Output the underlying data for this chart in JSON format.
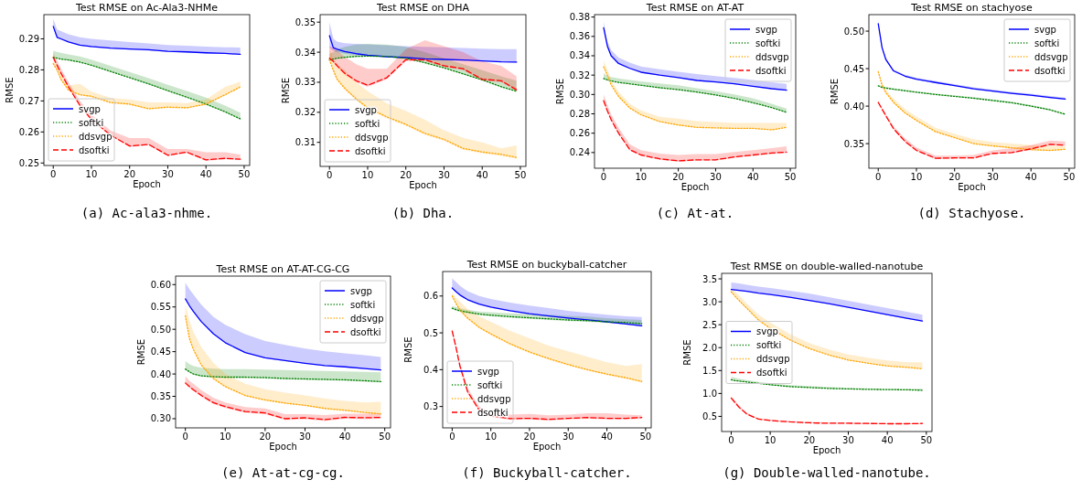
{
  "chart_data": [
    {
      "type": "line",
      "title": "Test RMSE on Ac-Ala3-NHMe",
      "xlabel": "Epoch",
      "ylabel": "RMSE",
      "x": [
        0,
        1,
        2,
        4,
        7,
        10,
        15,
        20,
        25,
        30,
        35,
        40,
        45,
        49
      ],
      "xlim": [
        -2.45,
        51.45
      ],
      "xticks": [
        0,
        10,
        20,
        30,
        40,
        50
      ],
      "ylim": [
        0.2492,
        0.2978
      ],
      "yticks": [
        0.25,
        0.26,
        0.27,
        0.28,
        0.29
      ],
      "legend": "bottom left",
      "annotations": [
        "(a) Ac-ala3-nhme."
      ],
      "series": [
        {
          "name": "svgp",
          "color": "#0000ff",
          "line_style": "solid",
          "values": [
            0.294,
            0.2905,
            0.29,
            0.289,
            0.288,
            0.2875,
            0.287,
            0.2867,
            0.2865,
            0.286,
            0.2858,
            0.2855,
            0.2853,
            0.285
          ],
          "lower": [
            0.2935,
            0.2903,
            0.2898,
            0.2888,
            0.2878,
            0.2873,
            0.2868,
            0.2865,
            0.2862,
            0.2858,
            0.2856,
            0.2853,
            0.2851,
            0.2849
          ],
          "upper": [
            0.2965,
            0.293,
            0.2925,
            0.2915,
            0.2905,
            0.29,
            0.2895,
            0.289,
            0.2885,
            0.288,
            0.2878,
            0.2875,
            0.2873,
            0.2872
          ]
        },
        {
          "name": "softki",
          "color": "#008000",
          "line_style": "dotted",
          "values": [
            0.284,
            0.2838,
            0.2835,
            0.2832,
            0.2825,
            0.2815,
            0.2795,
            0.2775,
            0.2755,
            0.2733,
            0.2712,
            0.269,
            0.2665,
            0.2642
          ],
          "lower": [
            0.2838,
            0.2836,
            0.2833,
            0.283,
            0.2823,
            0.2813,
            0.2793,
            0.2773,
            0.2753,
            0.2731,
            0.271,
            0.2688,
            0.2663,
            0.264
          ],
          "upper": [
            0.2862,
            0.2858,
            0.2855,
            0.285,
            0.2843,
            0.2833,
            0.2813,
            0.2793,
            0.2773,
            0.2752,
            0.2732,
            0.2711,
            0.2685,
            0.2662
          ]
        },
        {
          "name": "ddsvgp",
          "color": "#ffa500",
          "line_style": "dotted",
          "values": [
            0.282,
            0.28,
            0.277,
            0.2735,
            0.272,
            0.2715,
            0.2695,
            0.269,
            0.2675,
            0.268,
            0.2678,
            0.269,
            0.272,
            0.2745
          ],
          "lower": [
            0.2817,
            0.2797,
            0.2767,
            0.2732,
            0.2717,
            0.2712,
            0.2692,
            0.2687,
            0.2672,
            0.2677,
            0.2675,
            0.2687,
            0.2717,
            0.2742
          ],
          "upper": [
            0.2835,
            0.2815,
            0.2785,
            0.275,
            0.2755,
            0.273,
            0.271,
            0.2705,
            0.2695,
            0.2695,
            0.2693,
            0.2705,
            0.2745,
            0.2762
          ]
        },
        {
          "name": "dsoftki",
          "color": "#ff0000",
          "line_style": "dashed",
          "values": [
            0.284,
            0.2815,
            0.279,
            0.2745,
            0.2685,
            0.264,
            0.259,
            0.2555,
            0.256,
            0.2525,
            0.2535,
            0.251,
            0.2515,
            0.2512
          ],
          "lower": [
            0.2837,
            0.2812,
            0.2787,
            0.2742,
            0.2682,
            0.2637,
            0.2587,
            0.2552,
            0.2557,
            0.2522,
            0.2532,
            0.2507,
            0.2512,
            0.2509
          ],
          "upper": [
            0.2855,
            0.283,
            0.2805,
            0.276,
            0.27,
            0.2655,
            0.2605,
            0.258,
            0.258,
            0.2545,
            0.2545,
            0.2535,
            0.2535,
            0.2527
          ]
        }
      ]
    },
    {
      "type": "line",
      "title": "Test RMSE on DHA",
      "xlabel": "Epoch",
      "ylabel": "RMSE",
      "x": [
        0,
        1,
        2,
        4,
        7,
        10,
        15,
        20,
        25,
        30,
        35,
        40,
        45,
        49
      ],
      "xlim": [
        -2.45,
        51.45
      ],
      "xticks": [
        0,
        10,
        20,
        30,
        40,
        50
      ],
      "ylim": [
        0.302,
        0.3525
      ],
      "yticks": [
        0.31,
        0.32,
        0.33,
        0.34,
        0.35
      ],
      "legend": "bottom left",
      "annotations": [
        "(b) Dha."
      ],
      "series": [
        {
          "name": "svgp",
          "color": "#0000ff",
          "line_style": "solid",
          "values": [
            0.3455,
            0.3415,
            0.341,
            0.3402,
            0.3395,
            0.339,
            0.3385,
            0.3382,
            0.3378,
            0.3376,
            0.3374,
            0.3371,
            0.3368,
            0.3367
          ],
          "lower": [
            0.3415,
            0.3405,
            0.34,
            0.3395,
            0.339,
            0.3387,
            0.3383,
            0.338,
            0.3377,
            0.3375,
            0.3373,
            0.337,
            0.3367,
            0.3365
          ],
          "upper": [
            0.35,
            0.3445,
            0.3435,
            0.343,
            0.3428,
            0.3426,
            0.3423,
            0.342,
            0.3418,
            0.3416,
            0.3414,
            0.3412,
            0.341,
            0.341
          ]
        },
        {
          "name": "softki",
          "color": "#008000",
          "line_style": "dotted",
          "values": [
            0.3375,
            0.3377,
            0.338,
            0.3383,
            0.3386,
            0.3387,
            0.3386,
            0.338,
            0.3365,
            0.3348,
            0.3328,
            0.3308,
            0.3285,
            0.327
          ],
          "lower": [
            0.3373,
            0.3375,
            0.3378,
            0.3381,
            0.3384,
            0.3385,
            0.3384,
            0.3378,
            0.3363,
            0.3346,
            0.3326,
            0.3306,
            0.3283,
            0.3268
          ],
          "upper": [
            0.3395,
            0.34,
            0.341,
            0.3418,
            0.3425,
            0.3428,
            0.3425,
            0.3418,
            0.34,
            0.338,
            0.336,
            0.334,
            0.332,
            0.3305
          ]
        },
        {
          "name": "ddsvgp",
          "color": "#ffa500",
          "line_style": "dotted",
          "values": [
            0.3375,
            0.334,
            0.331,
            0.328,
            0.3245,
            0.3215,
            0.3185,
            0.316,
            0.313,
            0.311,
            0.308,
            0.3068,
            0.306,
            0.305
          ],
          "lower": [
            0.337,
            0.3335,
            0.3305,
            0.3275,
            0.324,
            0.321,
            0.318,
            0.3155,
            0.3125,
            0.3105,
            0.3075,
            0.3063,
            0.3055,
            0.3045
          ],
          "upper": [
            0.3415,
            0.338,
            0.336,
            0.334,
            0.33,
            0.327,
            0.323,
            0.3205,
            0.3175,
            0.314,
            0.3115,
            0.31,
            0.308,
            0.309
          ]
        },
        {
          "name": "dsoftki",
          "color": "#ff0000",
          "line_style": "dashed",
          "values": [
            0.338,
            0.337,
            0.3355,
            0.333,
            0.3305,
            0.329,
            0.3315,
            0.3375,
            0.3375,
            0.3355,
            0.3345,
            0.331,
            0.3305,
            0.3275
          ],
          "lower": [
            0.3375,
            0.3365,
            0.335,
            0.3325,
            0.33,
            0.3285,
            0.331,
            0.337,
            0.337,
            0.335,
            0.334,
            0.3305,
            0.33,
            0.327
          ],
          "upper": [
            0.342,
            0.3415,
            0.3405,
            0.3385,
            0.336,
            0.3345,
            0.3345,
            0.341,
            0.344,
            0.342,
            0.34,
            0.337,
            0.3355,
            0.332
          ]
        }
      ]
    },
    {
      "type": "line",
      "title": "Test RMSE on AT-AT",
      "xlabel": "Epoch",
      "ylabel": "RMSE",
      "x": [
        0,
        1,
        2,
        4,
        7,
        10,
        15,
        20,
        25,
        30,
        35,
        40,
        45,
        49
      ],
      "xlim": [
        -2.45,
        51.45
      ],
      "xticks": [
        0,
        10,
        20,
        30,
        40,
        50
      ],
      "ylim": [
        0.2238,
        0.3825
      ],
      "yticks": [
        0.24,
        0.26,
        0.28,
        {
          "value": 0.3,
          "label": "0.30"
        },
        0.32,
        0.34,
        0.36,
        0.38
      ],
      "legend": "top right",
      "annotations": [
        "(c) At-at."
      ],
      "series": [
        {
          "name": "svgp",
          "color": "#0000ff",
          "line_style": "solid",
          "values": [
            0.369,
            0.35,
            0.34,
            0.332,
            0.327,
            0.323,
            0.32,
            0.3175,
            0.3145,
            0.313,
            0.311,
            0.3085,
            0.306,
            0.3045
          ],
          "lower": [
            0.3685,
            0.3495,
            0.3395,
            0.3315,
            0.3265,
            0.3225,
            0.3195,
            0.317,
            0.314,
            0.3125,
            0.3105,
            0.308,
            0.3055,
            0.304
          ],
          "upper": [
            0.375,
            0.355,
            0.346,
            0.338,
            0.333,
            0.329,
            0.326,
            0.3235,
            0.321,
            0.319,
            0.317,
            0.315,
            0.3125,
            0.311
          ]
        },
        {
          "name": "softki",
          "color": "#008000",
          "line_style": "dotted",
          "values": [
            0.3165,
            0.315,
            0.314,
            0.3125,
            0.311,
            0.3095,
            0.307,
            0.305,
            0.3025,
            0.2995,
            0.296,
            0.2915,
            0.2865,
            0.2815
          ],
          "lower": [
            0.316,
            0.3145,
            0.3135,
            0.312,
            0.3105,
            0.309,
            0.3065,
            0.3045,
            0.302,
            0.299,
            0.2955,
            0.291,
            0.286,
            0.281
          ],
          "upper": [
            0.322,
            0.319,
            0.318,
            0.3165,
            0.315,
            0.3135,
            0.3115,
            0.3095,
            0.3065,
            0.3035,
            0.3,
            0.296,
            0.2905,
            0.2855
          ]
        },
        {
          "name": "ddsvgp",
          "color": "#ffa500",
          "line_style": "dotted",
          "values": [
            0.3285,
            0.32,
            0.31,
            0.298,
            0.286,
            0.279,
            0.272,
            0.2685,
            0.266,
            0.2655,
            0.265,
            0.265,
            0.2635,
            0.266
          ],
          "lower": [
            0.328,
            0.3195,
            0.3095,
            0.2975,
            0.2855,
            0.2785,
            0.2715,
            0.268,
            0.2655,
            0.265,
            0.2645,
            0.2645,
            0.263,
            0.2655
          ],
          "upper": [
            0.335,
            0.326,
            0.315,
            0.303,
            0.2905,
            0.2835,
            0.277,
            0.275,
            0.2725,
            0.2715,
            0.2705,
            0.2705,
            0.2705,
            0.2705
          ]
        },
        {
          "name": "dsoftki",
          "color": "#ff0000",
          "line_style": "dashed",
          "values": [
            0.2935,
            0.283,
            0.274,
            0.26,
            0.243,
            0.2375,
            0.2335,
            0.2315,
            0.2325,
            0.2325,
            0.2355,
            0.2375,
            0.2395,
            0.2405
          ],
          "lower": [
            0.2925,
            0.282,
            0.273,
            0.259,
            0.242,
            0.2365,
            0.2325,
            0.2305,
            0.2315,
            0.2315,
            0.2345,
            0.2365,
            0.2385,
            0.2395
          ],
          "upper": [
            0.3,
            0.289,
            0.2795,
            0.2655,
            0.2485,
            0.2425,
            0.239,
            0.2375,
            0.2385,
            0.2385,
            0.2405,
            0.2425,
            0.2445,
            0.2465
          ]
        }
      ]
    },
    {
      "type": "line",
      "title": "Test RMSE on stachyose",
      "xlabel": "Epoch",
      "ylabel": "RMSE",
      "x": [
        0,
        1,
        2,
        4,
        7,
        10,
        15,
        20,
        25,
        30,
        35,
        40,
        45,
        49
      ],
      "xlim": [
        -2.45,
        51.45
      ],
      "xticks": [
        0,
        10,
        20,
        30,
        40,
        50
      ],
      "ylim": [
        0.3172,
        0.522
      ],
      "yticks": [
        0.35,
        {
          "value": 0.4,
          "label": "0.40"
        },
        0.45,
        {
          "value": 0.5,
          "label": "0.50"
        }
      ],
      "legend": "top right",
      "annotations": [
        "(d) Stachyose."
      ],
      "series": [
        {
          "name": "svgp",
          "color": "#0000ff",
          "line_style": "solid",
          "values": [
            0.51,
            0.478,
            0.462,
            0.447,
            0.44,
            0.436,
            0.4315,
            0.4275,
            0.423,
            0.42,
            0.417,
            0.4145,
            0.4115,
            0.4095
          ],
          "lower": [
            0.509,
            0.477,
            0.461,
            0.446,
            0.439,
            0.435,
            0.4305,
            0.4265,
            0.422,
            0.419,
            0.416,
            0.4135,
            0.4105,
            0.4085
          ],
          "upper": [
            0.512,
            0.48,
            0.464,
            0.449,
            0.442,
            0.438,
            0.4335,
            0.4295,
            0.425,
            0.422,
            0.419,
            0.4165,
            0.4135,
            0.4115
          ]
        },
        {
          "name": "softki",
          "color": "#008000",
          "line_style": "dotted",
          "values": [
            0.427,
            0.425,
            0.424,
            0.4225,
            0.4205,
            0.4185,
            0.4155,
            0.413,
            0.4105,
            0.4075,
            0.4045,
            0.4,
            0.395,
            0.389
          ],
          "lower": [
            0.4265,
            0.4245,
            0.4235,
            0.422,
            0.42,
            0.418,
            0.415,
            0.4125,
            0.41,
            0.407,
            0.404,
            0.3995,
            0.3945,
            0.3885
          ],
          "upper": [
            0.4285,
            0.4265,
            0.4255,
            0.424,
            0.422,
            0.42,
            0.417,
            0.4145,
            0.412,
            0.409,
            0.406,
            0.4015,
            0.3965,
            0.3905
          ]
        },
        {
          "name": "ddsvgp",
          "color": "#ffa500",
          "line_style": "dotted",
          "values": [
            0.446,
            0.428,
            0.418,
            0.405,
            0.391,
            0.381,
            0.366,
            0.358,
            0.35,
            0.347,
            0.3445,
            0.342,
            0.341,
            0.3425
          ],
          "lower": [
            0.445,
            0.427,
            0.417,
            0.404,
            0.39,
            0.38,
            0.365,
            0.357,
            0.349,
            0.346,
            0.3435,
            0.341,
            0.34,
            0.3415
          ],
          "upper": [
            0.448,
            0.431,
            0.422,
            0.41,
            0.396,
            0.386,
            0.371,
            0.363,
            0.356,
            0.352,
            0.35,
            0.348,
            0.347,
            0.347
          ]
        },
        {
          "name": "dsoftki",
          "color": "#ff0000",
          "line_style": "dashed",
          "values": [
            0.405,
            0.396,
            0.387,
            0.37,
            0.353,
            0.341,
            0.3305,
            0.331,
            0.331,
            0.337,
            0.338,
            0.343,
            0.349,
            0.348
          ],
          "lower": [
            0.404,
            0.395,
            0.386,
            0.369,
            0.352,
            0.34,
            0.3295,
            0.33,
            0.33,
            0.336,
            0.337,
            0.342,
            0.348,
            0.347
          ],
          "upper": [
            0.407,
            0.398,
            0.39,
            0.373,
            0.357,
            0.345,
            0.334,
            0.334,
            0.335,
            0.341,
            0.344,
            0.348,
            0.354,
            0.353
          ]
        }
      ]
    },
    {
      "type": "line",
      "title": "Test RMSE on AT-AT-CG-CG",
      "xlabel": "Epoch",
      "ylabel": "RMSE",
      "x": [
        0,
        1,
        2,
        4,
        7,
        10,
        15,
        20,
        25,
        30,
        35,
        40,
        45,
        49
      ],
      "xlim": [
        -2.45,
        51.45
      ],
      "xticks": [
        0,
        10,
        20,
        30,
        40,
        50
      ],
      "ylim": [
        0.2795,
        0.619
      ],
      "yticks": [
        {
          "value": 0.3,
          "label": "0.30"
        },
        0.35,
        {
          "value": 0.4,
          "label": "0.40"
        },
        0.45,
        {
          "value": 0.5,
          "label": "0.50"
        },
        0.55,
        {
          "value": 0.6,
          "label": "0.60"
        }
      ],
      "legend": "top right",
      "annotations": [
        "(e) At-at-cg-cg."
      ],
      "series": [
        {
          "name": "svgp",
          "color": "#0000ff",
          "line_style": "solid",
          "values": [
            0.568,
            0.553,
            0.54,
            0.517,
            0.49,
            0.47,
            0.448,
            0.436,
            0.43,
            0.424,
            0.419,
            0.416,
            0.412,
            0.409
          ],
          "lower": [
            0.567,
            0.552,
            0.539,
            0.516,
            0.489,
            0.469,
            0.447,
            0.435,
            0.429,
            0.423,
            0.418,
            0.415,
            0.411,
            0.408
          ],
          "upper": [
            0.604,
            0.59,
            0.578,
            0.555,
            0.528,
            0.51,
            0.489,
            0.474,
            0.465,
            0.457,
            0.451,
            0.446,
            0.442,
            0.438
          ]
        },
        {
          "name": "softki",
          "color": "#008000",
          "line_style": "dotted",
          "values": [
            0.411,
            0.405,
            0.4,
            0.396,
            0.394,
            0.393,
            0.393,
            0.392,
            0.39,
            0.389,
            0.388,
            0.387,
            0.385,
            0.383
          ],
          "lower": [
            0.409,
            0.403,
            0.398,
            0.394,
            0.392,
            0.391,
            0.391,
            0.39,
            0.388,
            0.387,
            0.386,
            0.385,
            0.383,
            0.381
          ],
          "upper": [
            0.429,
            0.422,
            0.418,
            0.414,
            0.412,
            0.411,
            0.411,
            0.41,
            0.409,
            0.408,
            0.407,
            0.406,
            0.405,
            0.404
          ]
        },
        {
          "name": "ddsvgp",
          "color": "#ffa500",
          "line_style": "dotted",
          "values": [
            0.53,
            0.48,
            0.455,
            0.42,
            0.39,
            0.372,
            0.352,
            0.342,
            0.335,
            0.33,
            0.323,
            0.319,
            0.314,
            0.311
          ],
          "lower": [
            0.528,
            0.478,
            0.453,
            0.418,
            0.388,
            0.37,
            0.35,
            0.34,
            0.333,
            0.328,
            0.321,
            0.317,
            0.312,
            0.309
          ],
          "upper": [
            0.555,
            0.52,
            0.495,
            0.46,
            0.425,
            0.4,
            0.378,
            0.366,
            0.358,
            0.352,
            0.345,
            0.34,
            0.336,
            0.338
          ]
        },
        {
          "name": "dsoftki",
          "color": "#ff0000",
          "line_style": "dashed",
          "values": [
            0.38,
            0.372,
            0.365,
            0.352,
            0.336,
            0.327,
            0.316,
            0.313,
            0.3,
            0.302,
            0.298,
            0.303,
            0.302,
            0.303
          ],
          "lower": [
            0.377,
            0.369,
            0.362,
            0.349,
            0.333,
            0.324,
            0.313,
            0.31,
            0.297,
            0.299,
            0.295,
            0.3,
            0.299,
            0.3
          ],
          "upper": [
            0.395,
            0.385,
            0.378,
            0.364,
            0.347,
            0.336,
            0.326,
            0.323,
            0.31,
            0.31,
            0.308,
            0.311,
            0.311,
            0.312
          ]
        }
      ]
    },
    {
      "type": "line",
      "title": "Test RMSE on buckyball-catcher",
      "xlabel": "Epoch",
      "ylabel": "RMSE",
      "x": [
        0,
        1,
        2,
        4,
        7,
        10,
        15,
        20,
        25,
        30,
        35,
        40,
        45,
        49
      ],
      "xlim": [
        -2.45,
        51.45
      ],
      "xticks": [
        0,
        10,
        20,
        30,
        40,
        50
      ],
      "ylim": [
        0.242,
        0.6665
      ],
      "yticks": [
        0.3,
        0.4,
        0.5,
        0.6
      ],
      "legend": "bottom left",
      "annotations": [
        "(f) Buckyball-catcher."
      ],
      "series": [
        {
          "name": "svgp",
          "color": "#0000ff",
          "line_style": "solid",
          "values": [
            0.622,
            0.612,
            0.603,
            0.59,
            0.578,
            0.57,
            0.56,
            0.552,
            0.546,
            0.54,
            0.535,
            0.53,
            0.524,
            0.519
          ],
          "lower": [
            0.62,
            0.61,
            0.601,
            0.588,
            0.576,
            0.568,
            0.558,
            0.55,
            0.544,
            0.538,
            0.533,
            0.528,
            0.522,
            0.517
          ],
          "upper": [
            0.648,
            0.638,
            0.628,
            0.613,
            0.6,
            0.592,
            0.582,
            0.574,
            0.567,
            0.56,
            0.554,
            0.549,
            0.545,
            0.543
          ]
        },
        {
          "name": "softki",
          "color": "#008000",
          "line_style": "dotted",
          "values": [
            0.567,
            0.563,
            0.56,
            0.556,
            0.551,
            0.548,
            0.544,
            0.541,
            0.538,
            0.535,
            0.533,
            0.53,
            0.528,
            0.525
          ],
          "lower": [
            0.564,
            0.56,
            0.557,
            0.553,
            0.548,
            0.545,
            0.541,
            0.538,
            0.535,
            0.532,
            0.53,
            0.527,
            0.525,
            0.522
          ],
          "upper": [
            0.573,
            0.57,
            0.567,
            0.562,
            0.558,
            0.556,
            0.553,
            0.551,
            0.549,
            0.546,
            0.544,
            0.54,
            0.537,
            0.535
          ]
        },
        {
          "name": "ddsvgp",
          "color": "#ffa500",
          "line_style": "dotted",
          "values": [
            0.6,
            0.58,
            0.562,
            0.54,
            0.515,
            0.497,
            0.47,
            0.448,
            0.43,
            0.414,
            0.4,
            0.388,
            0.378,
            0.368
          ],
          "lower": [
            0.597,
            0.577,
            0.559,
            0.537,
            0.512,
            0.494,
            0.467,
            0.445,
            0.427,
            0.411,
            0.397,
            0.385,
            0.375,
            0.365
          ],
          "upper": [
            0.61,
            0.595,
            0.585,
            0.565,
            0.545,
            0.53,
            0.505,
            0.485,
            0.465,
            0.45,
            0.435,
            0.42,
            0.41,
            0.415
          ]
        },
        {
          "name": "dsoftki",
          "color": "#ff0000",
          "line_style": "dashed",
          "values": [
            0.505,
            0.46,
            0.41,
            0.34,
            0.29,
            0.275,
            0.267,
            0.268,
            0.265,
            0.268,
            0.27,
            0.268,
            0.268,
            0.27
          ],
          "lower": [
            0.502,
            0.457,
            0.407,
            0.337,
            0.287,
            0.272,
            0.264,
            0.265,
            0.262,
            0.265,
            0.267,
            0.265,
            0.265,
            0.267
          ],
          "upper": [
            0.512,
            0.47,
            0.42,
            0.35,
            0.3,
            0.285,
            0.278,
            0.28,
            0.276,
            0.278,
            0.282,
            0.282,
            0.278,
            0.276
          ]
        }
      ]
    },
    {
      "type": "line",
      "title": "Test RMSE on double-walled-nanotube",
      "xlabel": "Epoch",
      "ylabel": "RMSE",
      "x": [
        0,
        1,
        2,
        4,
        7,
        10,
        15,
        20,
        25,
        30,
        35,
        40,
        45,
        49
      ],
      "xlim": [
        -2.45,
        51.45
      ],
      "xticks": [
        0,
        10,
        20,
        30,
        40,
        50
      ],
      "ylim": [
        0.17,
        3.62
      ],
      "yticks": [
        0.5,
        {
          "value": 1,
          "label": "1.0"
        },
        1.5,
        {
          "value": 2,
          "label": "2.0"
        },
        2.5,
        {
          "value": 3,
          "label": "3.0"
        },
        3.5
      ],
      "legend": "left",
      "annotations": [
        "(g) Double-walled-nanotube."
      ],
      "series": [
        {
          "name": "svgp",
          "color": "#0000ff",
          "line_style": "solid",
          "values": [
            3.27,
            3.26,
            3.25,
            3.23,
            3.19,
            3.16,
            3.1,
            3.03,
            2.96,
            2.88,
            2.8,
            2.72,
            2.64,
            2.58
          ],
          "lower": [
            3.26,
            3.25,
            3.24,
            3.22,
            3.18,
            3.15,
            3.09,
            3.02,
            2.95,
            2.87,
            2.79,
            2.71,
            2.63,
            2.57
          ],
          "upper": [
            3.42,
            3.41,
            3.4,
            3.37,
            3.33,
            3.3,
            3.24,
            3.18,
            3.1,
            3.02,
            2.94,
            2.86,
            2.78,
            2.72
          ]
        },
        {
          "name": "softki",
          "color": "#008000",
          "line_style": "dotted",
          "values": [
            1.3,
            1.28,
            1.27,
            1.25,
            1.22,
            1.19,
            1.15,
            1.13,
            1.11,
            1.1,
            1.09,
            1.085,
            1.08,
            1.07
          ],
          "lower": [
            1.29,
            1.27,
            1.26,
            1.24,
            1.21,
            1.18,
            1.14,
            1.12,
            1.1,
            1.09,
            1.08,
            1.075,
            1.07,
            1.06
          ],
          "upper": [
            1.36,
            1.34,
            1.32,
            1.29,
            1.25,
            1.22,
            1.18,
            1.16,
            1.14,
            1.12,
            1.11,
            1.1,
            1.1,
            1.1
          ]
        },
        {
          "name": "ddsvgp",
          "color": "#ffa500",
          "line_style": "dotted",
          "values": [
            3.22,
            3.12,
            3.03,
            2.86,
            2.6,
            2.42,
            2.17,
            1.98,
            1.84,
            1.73,
            1.66,
            1.6,
            1.57,
            1.54
          ],
          "lower": [
            3.21,
            3.11,
            3.02,
            2.85,
            2.59,
            2.41,
            2.16,
            1.97,
            1.83,
            1.72,
            1.65,
            1.59,
            1.56,
            1.53
          ],
          "upper": [
            3.3,
            3.22,
            3.14,
            2.96,
            2.72,
            2.55,
            2.3,
            2.1,
            1.96,
            1.85,
            1.78,
            1.72,
            1.68,
            1.68
          ]
        },
        {
          "name": "dsoftki",
          "color": "#ff0000",
          "line_style": "dashed",
          "values": [
            0.9,
            0.8,
            0.7,
            0.55,
            0.44,
            0.41,
            0.38,
            0.36,
            0.35,
            0.35,
            0.345,
            0.34,
            0.34,
            0.345
          ],
          "lower": [
            0.89,
            0.79,
            0.69,
            0.54,
            0.43,
            0.4,
            0.37,
            0.35,
            0.34,
            0.34,
            0.335,
            0.33,
            0.33,
            0.335
          ],
          "upper": [
            0.94,
            0.84,
            0.74,
            0.58,
            0.46,
            0.43,
            0.4,
            0.38,
            0.37,
            0.365,
            0.36,
            0.355,
            0.355,
            0.36
          ]
        }
      ]
    }
  ]
}
